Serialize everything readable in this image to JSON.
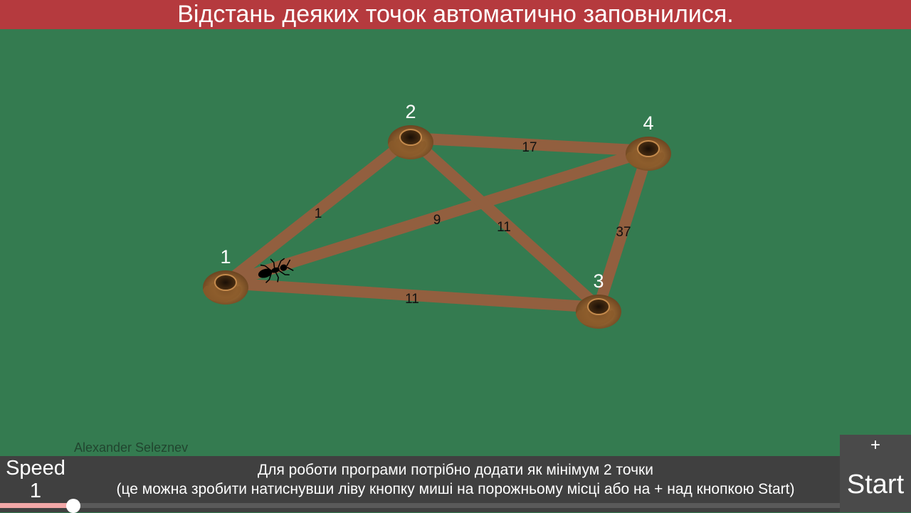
{
  "header": {
    "message": "Відстань деяких точок автоматично заповнилися."
  },
  "graph": {
    "nodes": [
      {
        "label": "1"
      },
      {
        "label": "2"
      },
      {
        "label": "3"
      },
      {
        "label": "4"
      }
    ],
    "edges": [
      {
        "from": "1",
        "to": "2",
        "distance": "1"
      },
      {
        "from": "2",
        "to": "4",
        "distance": "17"
      },
      {
        "from": "1",
        "to": "4",
        "distance": "9"
      },
      {
        "from": "2",
        "to": "3",
        "distance": "11"
      },
      {
        "from": "4",
        "to": "3",
        "distance": "37"
      },
      {
        "from": "1",
        "to": "3",
        "distance": "11"
      }
    ]
  },
  "footer": {
    "author": "Alexander Seleznev",
    "speed_label": "Speed",
    "speed_value": "1",
    "speed_fraction": 0.087,
    "hint_line1": "Для роботи програми потрібно додати як мінімум 2 точки",
    "hint_line2": "(це можна зробити натиснувши ліву кнопку миші на порожньому місці або на + над кнопкою Start)",
    "add_label": "+",
    "start_label": "Start"
  },
  "colors": {
    "field": "#347b50",
    "header": "#b53a3e",
    "edge": "#925f3f",
    "footer": "#404040"
  }
}
